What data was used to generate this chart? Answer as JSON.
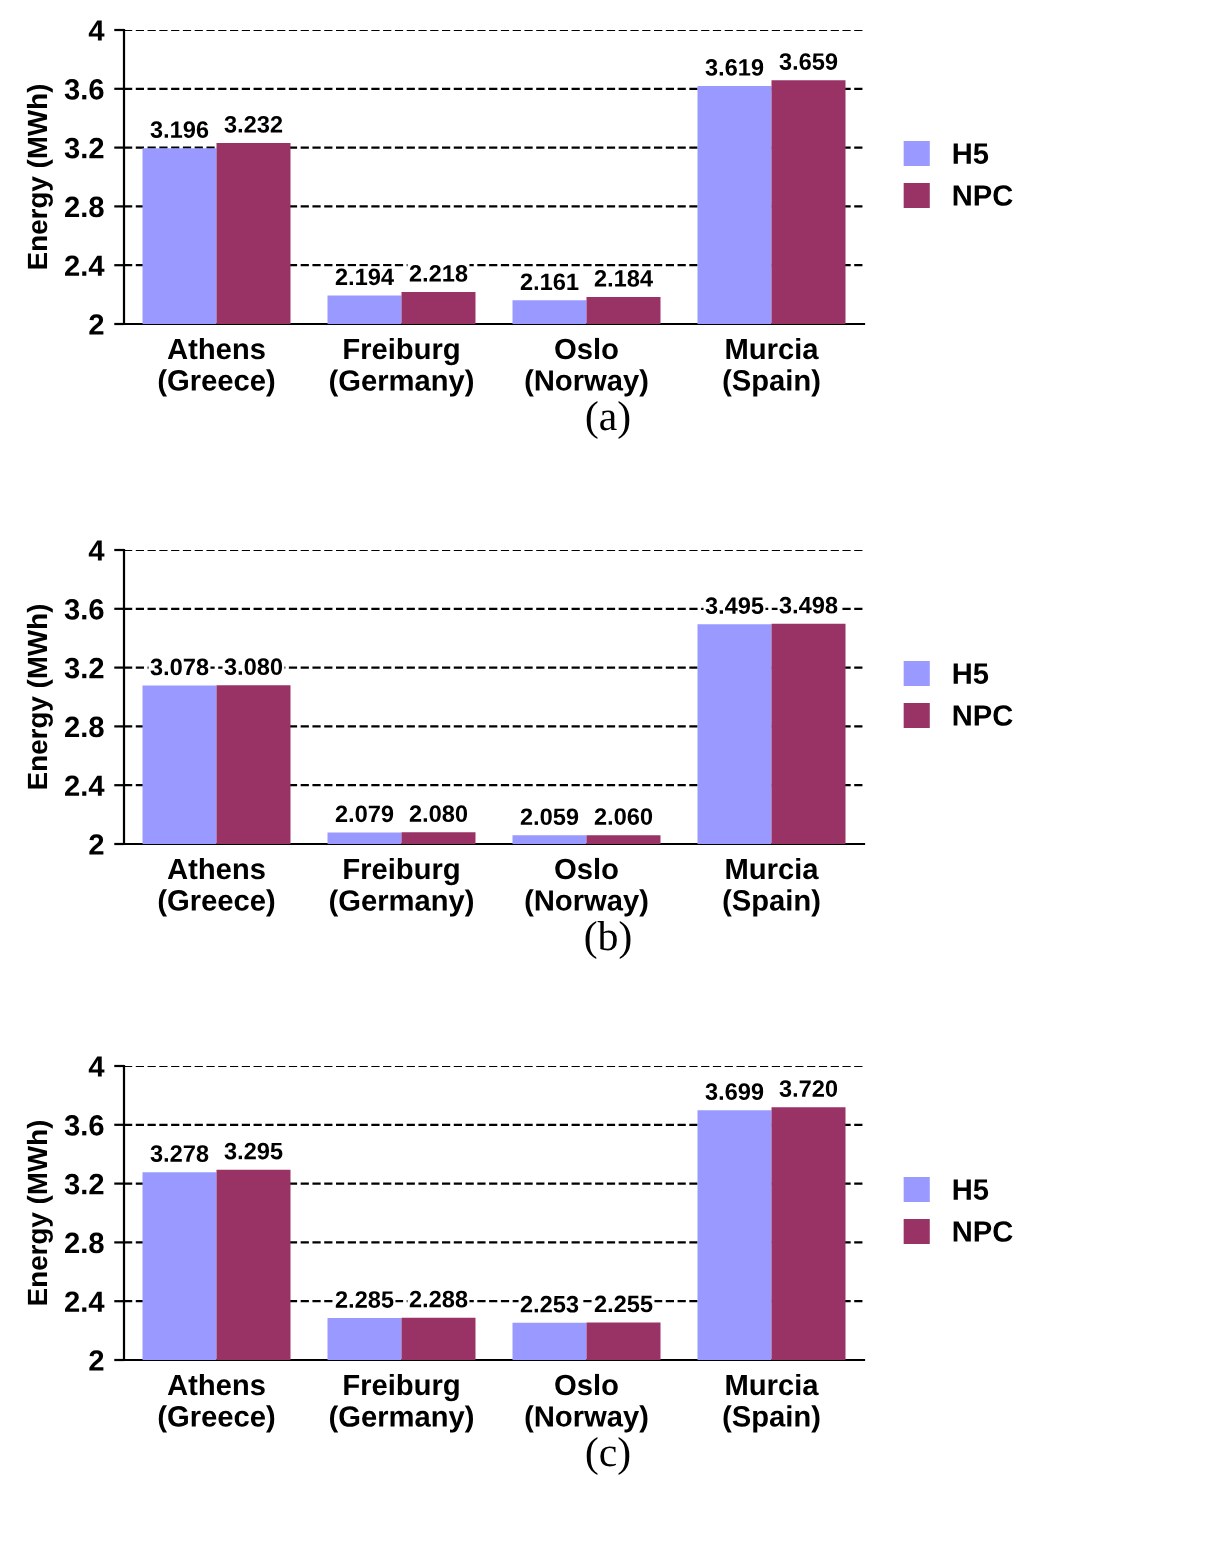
{
  "chart_data": [
    {
      "type": "bar",
      "categories": [
        "Athens\n(Greece)",
        "Freiburg\n(Germany)",
        "Oslo\n(Norway)",
        "Murcia\n(Spain)"
      ],
      "ylabel": "Energy (MWh)",
      "ylim": [
        2,
        4
      ],
      "yticks": [
        2,
        2.4,
        2.8,
        3.2,
        3.6,
        4
      ],
      "grid": "y",
      "legend": "right",
      "annotations": [
        "(a)"
      ],
      "series": [
        {
          "name": "H5",
          "color": "#9999ff",
          "values": [
            3.196,
            2.194,
            2.161,
            3.619
          ],
          "value_labels": [
            "3.196",
            "2.194",
            "2.161",
            "3.619"
          ]
        },
        {
          "name": "NPC",
          "color": "#993366",
          "values": [
            3.232,
            2.218,
            2.184,
            3.659
          ],
          "value_labels": [
            "3.232",
            "2.218",
            "2.184",
            "3.659"
          ]
        }
      ]
    },
    {
      "type": "bar",
      "categories": [
        "Athens\n(Greece)",
        "Freiburg\n(Germany)",
        "Oslo\n(Norway)",
        "Murcia\n(Spain)"
      ],
      "ylabel": "Energy (MWh)",
      "ylim": [
        2,
        4
      ],
      "yticks": [
        2,
        2.4,
        2.8,
        3.2,
        3.6,
        4
      ],
      "grid": "y",
      "legend": "right",
      "annotations": [
        "(b)"
      ],
      "series": [
        {
          "name": "H5",
          "color": "#9999ff",
          "values": [
            3.078,
            2.079,
            2.059,
            3.495
          ],
          "value_labels": [
            "3.078",
            "2.079",
            "2.059",
            "3.495"
          ]
        },
        {
          "name": "NPC",
          "color": "#993366",
          "values": [
            3.08,
            2.08,
            2.06,
            3.498
          ],
          "value_labels": [
            "3.080",
            "2.080",
            "2.060",
            "3.498"
          ]
        }
      ]
    },
    {
      "type": "bar",
      "categories": [
        "Athens\n(Greece)",
        "Freiburg\n(Germany)",
        "Oslo\n(Norway)",
        "Murcia\n(Spain)"
      ],
      "ylabel": "Energy (MWh)",
      "ylim": [
        2,
        4
      ],
      "yticks": [
        2,
        2.4,
        2.8,
        3.2,
        3.6,
        4
      ],
      "grid": "y",
      "legend": "right",
      "annotations": [
        "(c)"
      ],
      "series": [
        {
          "name": "H5",
          "color": "#9999ff",
          "values": [
            3.278,
            2.285,
            2.253,
            3.699
          ],
          "value_labels": [
            "3.278",
            "2.285",
            "2.253",
            "3.699"
          ]
        },
        {
          "name": "NPC",
          "color": "#993366",
          "values": [
            3.295,
            2.288,
            2.255,
            3.72
          ],
          "value_labels": [
            "3.295",
            "2.288",
            "2.255",
            "3.720"
          ]
        }
      ]
    }
  ]
}
